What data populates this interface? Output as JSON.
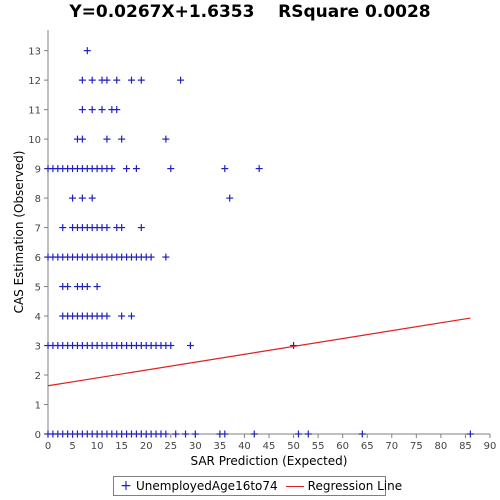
{
  "chart_data": {
    "type": "scatter",
    "title": "Y=0.0267X+1.6353    RSquare 0.0028",
    "xlabel": "SAR Prediction (Expected)",
    "ylabel": "CAS Estimation (Observed)",
    "xlim": [
      0,
      90
    ],
    "ylim": [
      0,
      13.7
    ],
    "xticks": [
      0,
      5,
      10,
      15,
      20,
      25,
      30,
      35,
      40,
      45,
      50,
      55,
      60,
      65,
      70,
      75,
      80,
      85,
      90
    ],
    "yticks": [
      0,
      1,
      2,
      3,
      4,
      5,
      6,
      7,
      8,
      9,
      10,
      11,
      12,
      13
    ],
    "grid": false,
    "legend_position": "bottom",
    "series": [
      {
        "name": "UnemployedAge16to74",
        "marker": "plus",
        "color": "#2020c0",
        "points": [
          [
            0,
            0
          ],
          [
            1,
            0
          ],
          [
            2,
            0
          ],
          [
            3,
            0
          ],
          [
            4,
            0
          ],
          [
            5,
            0
          ],
          [
            6,
            0
          ],
          [
            7,
            0
          ],
          [
            8,
            0
          ],
          [
            9,
            0
          ],
          [
            10,
            0
          ],
          [
            11,
            0
          ],
          [
            12,
            0
          ],
          [
            13,
            0
          ],
          [
            14,
            0
          ],
          [
            15,
            0
          ],
          [
            16,
            0
          ],
          [
            17,
            0
          ],
          [
            18,
            0
          ],
          [
            19,
            0
          ],
          [
            20,
            0
          ],
          [
            21,
            0
          ],
          [
            22,
            0
          ],
          [
            23,
            0
          ],
          [
            24,
            0
          ],
          [
            26,
            0
          ],
          [
            28,
            0
          ],
          [
            30,
            0
          ],
          [
            35,
            0
          ],
          [
            36,
            0
          ],
          [
            42,
            0
          ],
          [
            51,
            0
          ],
          [
            53,
            0
          ],
          [
            64,
            0
          ],
          [
            86,
            0
          ],
          [
            0,
            3
          ],
          [
            1,
            3
          ],
          [
            2,
            3
          ],
          [
            3,
            3
          ],
          [
            4,
            3
          ],
          [
            5,
            3
          ],
          [
            6,
            3
          ],
          [
            7,
            3
          ],
          [
            8,
            3
          ],
          [
            9,
            3
          ],
          [
            10,
            3
          ],
          [
            11,
            3
          ],
          [
            12,
            3
          ],
          [
            13,
            3
          ],
          [
            14,
            3
          ],
          [
            15,
            3
          ],
          [
            16,
            3
          ],
          [
            17,
            3
          ],
          [
            18,
            3
          ],
          [
            19,
            3
          ],
          [
            20,
            3
          ],
          [
            21,
            3
          ],
          [
            22,
            3
          ],
          [
            23,
            3
          ],
          [
            24,
            3
          ],
          [
            25,
            3
          ],
          [
            29,
            3
          ],
          [
            50,
            3
          ],
          [
            3,
            4
          ],
          [
            4,
            4
          ],
          [
            5,
            4
          ],
          [
            6,
            4
          ],
          [
            7,
            4
          ],
          [
            8,
            4
          ],
          [
            9,
            4
          ],
          [
            10,
            4
          ],
          [
            11,
            4
          ],
          [
            12,
            4
          ],
          [
            15,
            4
          ],
          [
            17,
            4
          ],
          [
            3,
            5
          ],
          [
            4,
            5
          ],
          [
            6,
            5
          ],
          [
            7,
            5
          ],
          [
            8,
            5
          ],
          [
            10,
            5
          ],
          [
            0,
            6
          ],
          [
            1,
            6
          ],
          [
            2,
            6
          ],
          [
            3,
            6
          ],
          [
            4,
            6
          ],
          [
            5,
            6
          ],
          [
            6,
            6
          ],
          [
            7,
            6
          ],
          [
            8,
            6
          ],
          [
            9,
            6
          ],
          [
            10,
            6
          ],
          [
            11,
            6
          ],
          [
            12,
            6
          ],
          [
            13,
            6
          ],
          [
            14,
            6
          ],
          [
            15,
            6
          ],
          [
            16,
            6
          ],
          [
            17,
            6
          ],
          [
            18,
            6
          ],
          [
            19,
            6
          ],
          [
            20,
            6
          ],
          [
            21,
            6
          ],
          [
            24,
            6
          ],
          [
            3,
            7
          ],
          [
            5,
            7
          ],
          [
            6,
            7
          ],
          [
            7,
            7
          ],
          [
            8,
            7
          ],
          [
            9,
            7
          ],
          [
            10,
            7
          ],
          [
            11,
            7
          ],
          [
            12,
            7
          ],
          [
            14,
            7
          ],
          [
            15,
            7
          ],
          [
            19,
            7
          ],
          [
            5,
            8
          ],
          [
            7,
            8
          ],
          [
            9,
            8
          ],
          [
            37,
            8
          ],
          [
            0,
            9
          ],
          [
            1,
            9
          ],
          [
            2,
            9
          ],
          [
            3,
            9
          ],
          [
            4,
            9
          ],
          [
            5,
            9
          ],
          [
            6,
            9
          ],
          [
            7,
            9
          ],
          [
            8,
            9
          ],
          [
            9,
            9
          ],
          [
            10,
            9
          ],
          [
            11,
            9
          ],
          [
            12,
            9
          ],
          [
            13,
            9
          ],
          [
            16,
            9
          ],
          [
            18,
            9
          ],
          [
            25,
            9
          ],
          [
            36,
            9
          ],
          [
            43,
            9
          ],
          [
            6,
            10
          ],
          [
            7,
            10
          ],
          [
            12,
            10
          ],
          [
            15,
            10
          ],
          [
            24,
            10
          ],
          [
            7,
            11
          ],
          [
            9,
            11
          ],
          [
            11,
            11
          ],
          [
            13,
            11
          ],
          [
            14,
            11
          ],
          [
            7,
            12
          ],
          [
            9,
            12
          ],
          [
            11,
            12
          ],
          [
            12,
            12
          ],
          [
            14,
            12
          ],
          [
            17,
            12
          ],
          [
            19,
            12
          ],
          [
            27,
            12
          ],
          [
            8,
            13
          ]
        ]
      },
      {
        "name": "Regression Line",
        "type": "line",
        "color": "#e02020",
        "slope": 0.0267,
        "intercept": 1.6353,
        "x_range": [
          0,
          86
        ]
      }
    ]
  }
}
